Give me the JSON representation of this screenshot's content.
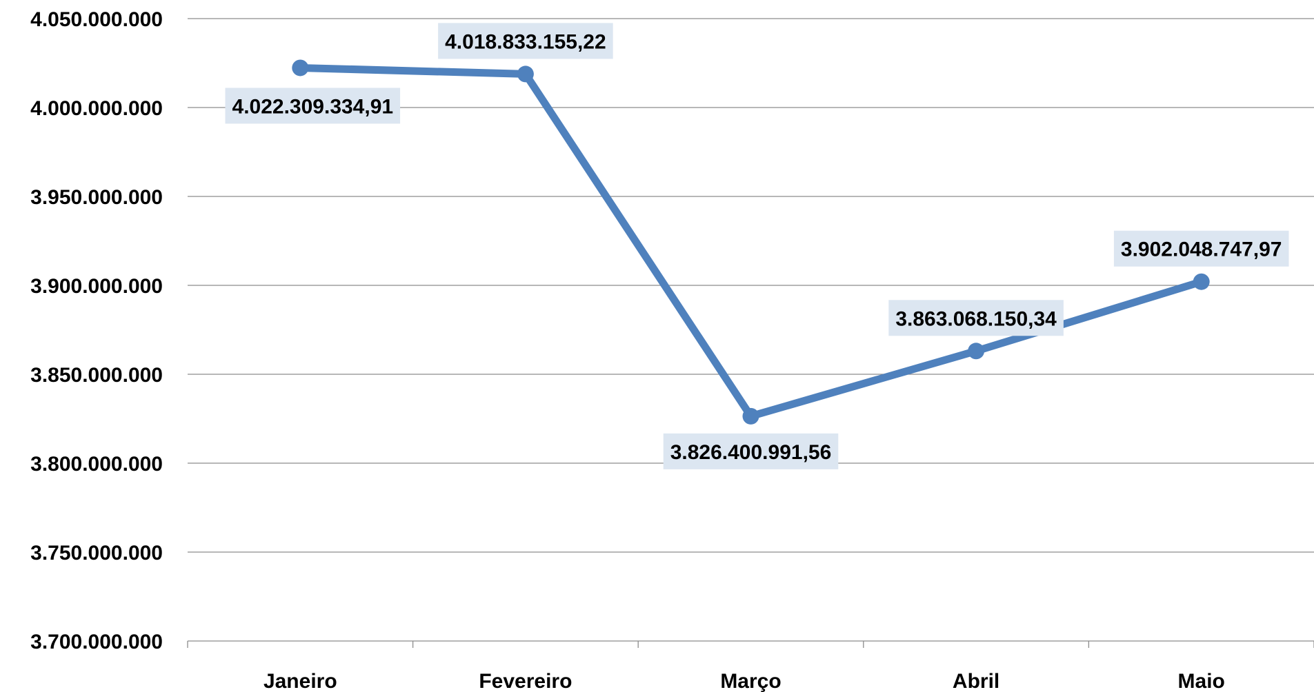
{
  "chart_data": {
    "type": "line",
    "categories": [
      "Janeiro",
      "Fevereiro",
      "Março",
      "Abril",
      "Maio"
    ],
    "series": [
      {
        "values": [
          4022309334.91,
          4018833155.22,
          3826400991.56,
          3863068150.34,
          3902048747.97
        ],
        "data_labels": [
          "4.022.309.334,91",
          "4.018.833.155,22",
          "3.826.400.991,56",
          "3.863.068.150,34",
          "3.902.048.747,97"
        ],
        "color": "#4f81bd"
      }
    ],
    "yticks": [
      3700000000,
      3750000000,
      3800000000,
      3850000000,
      3900000000,
      3950000000,
      4000000000,
      4050000000
    ],
    "ytick_labels": [
      "3.700.000.000",
      "3.750.000.000",
      "3.800.000.000",
      "3.850.000.000",
      "3.900.000.000",
      "3.950.000.000",
      "4.000.000.000",
      "4.050.000.000"
    ],
    "ylim": [
      3700000000,
      4050000000
    ],
    "grid": true,
    "legend": false,
    "title": "",
    "xlabel": "",
    "ylabel": "",
    "colors": {
      "line": "#4f81bd",
      "label_background": "#dce6f1",
      "gridline": "#8c8c8c"
    }
  }
}
